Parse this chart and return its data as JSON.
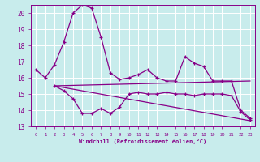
{
  "xlabel": "Windchill (Refroidissement éolien,°C)",
  "bg_color": "#c8ecec",
  "grid_color": "#aadddd",
  "line_color": "#880088",
  "ylim": [
    13,
    20.5
  ],
  "xlim": [
    -0.5,
    23.5
  ],
  "yticks": [
    13,
    14,
    15,
    16,
    17,
    18,
    19,
    20
  ],
  "xticks": [
    0,
    1,
    2,
    3,
    4,
    5,
    6,
    7,
    8,
    9,
    10,
    11,
    12,
    13,
    14,
    15,
    16,
    17,
    18,
    19,
    20,
    21,
    22,
    23
  ],
  "line1_x": [
    0,
    1,
    2,
    3,
    4,
    5,
    6,
    7,
    8,
    9,
    10,
    11,
    12,
    13,
    14,
    15,
    16,
    17,
    18,
    19,
    20,
    21,
    22,
    23
  ],
  "line1_y": [
    16.5,
    16.0,
    16.8,
    18.2,
    20.0,
    20.5,
    20.3,
    18.5,
    16.3,
    15.9,
    16.0,
    16.2,
    16.5,
    16.0,
    15.8,
    15.8,
    17.3,
    16.9,
    16.7,
    15.8,
    15.8,
    15.8,
    14.0,
    13.5
  ],
  "line2_x": [
    2,
    3,
    4,
    5,
    6,
    7,
    8,
    9,
    10,
    11,
    12,
    13,
    14,
    15,
    16,
    17,
    18,
    19,
    20,
    21,
    22,
    23
  ],
  "line2_y": [
    15.5,
    15.2,
    14.7,
    13.8,
    13.8,
    14.1,
    13.8,
    14.2,
    15.0,
    15.1,
    15.0,
    15.0,
    15.1,
    15.0,
    15.0,
    14.9,
    15.0,
    15.0,
    15.0,
    14.9,
    13.9,
    13.4
  ],
  "line3_x": [
    2,
    23
  ],
  "line3_y": [
    15.5,
    15.8
  ],
  "line4_x": [
    2,
    23
  ],
  "line4_y": [
    15.5,
    13.35
  ]
}
